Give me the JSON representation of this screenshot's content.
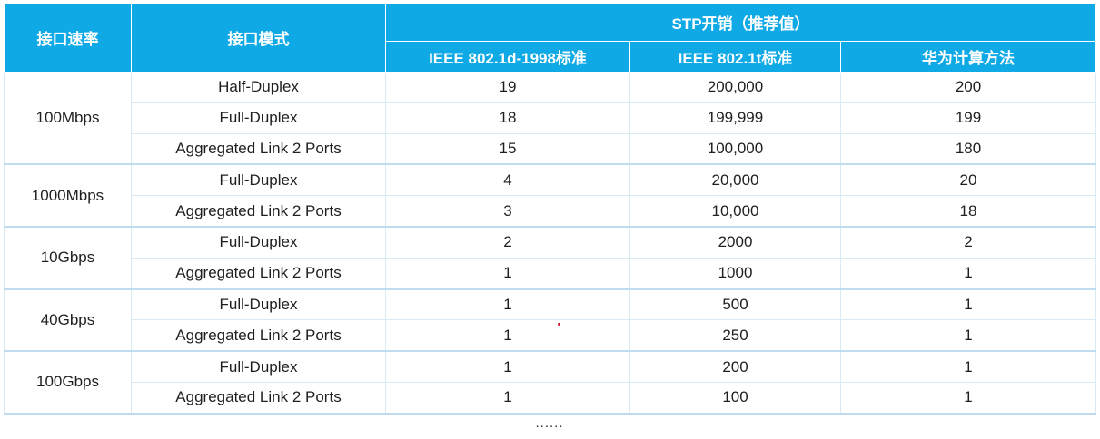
{
  "header": {
    "speed": "接口速率",
    "mode": "接口模式",
    "stp_cost": "STP开销（推荐值）",
    "ieee_8021d": "IEEE 802.1d-1998标准",
    "ieee_8021t": "IEEE 802.1t标准",
    "huawei": "华为计算方法"
  },
  "groups": [
    {
      "speed": "100Mbps",
      "rows": [
        {
          "mode": "Half-Duplex",
          "d": "19",
          "t": "200,000",
          "huawei": "200"
        },
        {
          "mode": "Full-Duplex",
          "d": "18",
          "t": "199,999",
          "huawei": "199"
        },
        {
          "mode": "Aggregated Link 2 Ports",
          "d": "15",
          "t": "100,000",
          "huawei": "180"
        }
      ]
    },
    {
      "speed": "1000Mbps",
      "rows": [
        {
          "mode": "Full-Duplex",
          "d": "4",
          "t": "20,000",
          "huawei": "20"
        },
        {
          "mode": "Aggregated Link 2 Ports",
          "d": "3",
          "t": "10,000",
          "huawei": "18"
        }
      ]
    },
    {
      "speed": "10Gbps",
      "rows": [
        {
          "mode": "Full-Duplex",
          "d": "2",
          "t": "2000",
          "huawei": "2"
        },
        {
          "mode": "Aggregated Link 2 Ports",
          "d": "1",
          "t": "1000",
          "huawei": "1"
        }
      ]
    },
    {
      "speed": "40Gbps",
      "rows": [
        {
          "mode": "Full-Duplex",
          "d": "1",
          "t": "500",
          "huawei": "1"
        },
        {
          "mode": "Aggregated Link 2 Ports",
          "d": "1",
          "t": "250",
          "huawei": "1"
        }
      ]
    },
    {
      "speed": "100Gbps",
      "rows": [
        {
          "mode": "Full-Duplex",
          "d": "1",
          "t": "200",
          "huawei": "1"
        },
        {
          "mode": "Aggregated Link 2 Ports",
          "d": "1",
          "t": "100",
          "huawei": "1"
        }
      ]
    }
  ],
  "ellipsis": "......",
  "colors": {
    "header_bg": "#0fa9e6",
    "header_text": "#ffffff",
    "grid_line": "#d9eaf5",
    "stray_dot": "#d9163a"
  }
}
